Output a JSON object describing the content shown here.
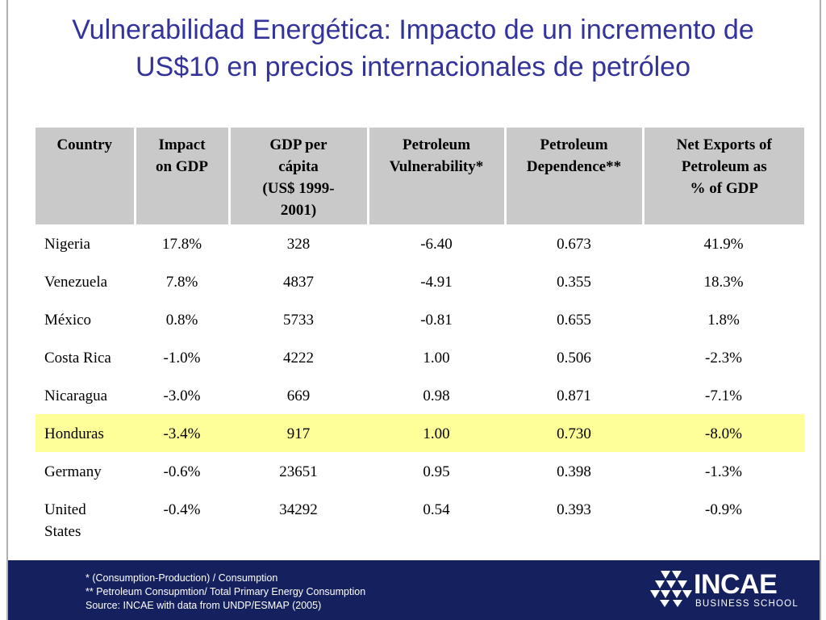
{
  "title": {
    "line1": "Vulnerabilidad Energética: Impacto de un incremento de",
    "line2": "US$10 en precios internacionales de petróleo"
  },
  "table": {
    "headers": [
      [
        "Country"
      ],
      [
        "Impact",
        "on GDP"
      ],
      [
        "GDP per",
        "cápita",
        "(US$ 1999-",
        "2001)"
      ],
      [
        "Petroleum",
        "Vulnerability*"
      ],
      [
        "Petroleum",
        "Dependence**"
      ],
      [
        "Net Exports of",
        "Petroleum as",
        "% of GDP"
      ]
    ],
    "rows": [
      {
        "country": [
          "Nigeria"
        ],
        "impact": "17.8%",
        "gdp": "328",
        "vulnerability": "-6.40",
        "dependence": "0.673",
        "net_exports": "41.9%"
      },
      {
        "country": [
          "Venezuela"
        ],
        "impact": "7.8%",
        "gdp": "4837",
        "vulnerability": "-4.91",
        "dependence": "0.355",
        "net_exports": "18.3%"
      },
      {
        "country": [
          "México"
        ],
        "impact": "0.8%",
        "gdp": "5733",
        "vulnerability": "-0.81",
        "dependence": "0.655",
        "net_exports": "1.8%"
      },
      {
        "country": [
          "Costa Rica"
        ],
        "impact": "-1.0%",
        "gdp": "4222",
        "vulnerability": "1.00",
        "dependence": "0.506",
        "net_exports": "-2.3%"
      },
      {
        "country": [
          "Nicaragua"
        ],
        "impact": "-3.0%",
        "gdp": "669",
        "vulnerability": "0.98",
        "dependence": "0.871",
        "net_exports": "-7.1%"
      },
      {
        "country": [
          "Honduras"
        ],
        "impact": "-3.4%",
        "gdp": "917",
        "vulnerability": "1.00",
        "dependence": "0.730",
        "net_exports": "-8.0%",
        "highlight": true
      },
      {
        "country": [
          "Germany"
        ],
        "impact": "-0.6%",
        "gdp": "23651",
        "vulnerability": "0.95",
        "dependence": "0.398",
        "net_exports": "-1.3%"
      },
      {
        "country": [
          "United",
          "States"
        ],
        "impact": "-0.4%",
        "gdp": "34292",
        "vulnerability": "0.54",
        "dependence": "0.393",
        "net_exports": "-0.9%"
      }
    ]
  },
  "footnotes": [
    "* (Consumption-Production) / Consumption",
    "** Petroleum Consupmtion/ Total Primary Energy Consumption",
    "Source: INCAE with data from UNDP/ESMAP (2005)"
  ],
  "logo": {
    "name": "INCAE",
    "subtitle": "BUSINESS SCHOOL"
  },
  "colors": {
    "title": "#33339a",
    "header_bg": "#c9c9c9",
    "highlight": "#ffff99",
    "footer_bg": "#15205e"
  }
}
